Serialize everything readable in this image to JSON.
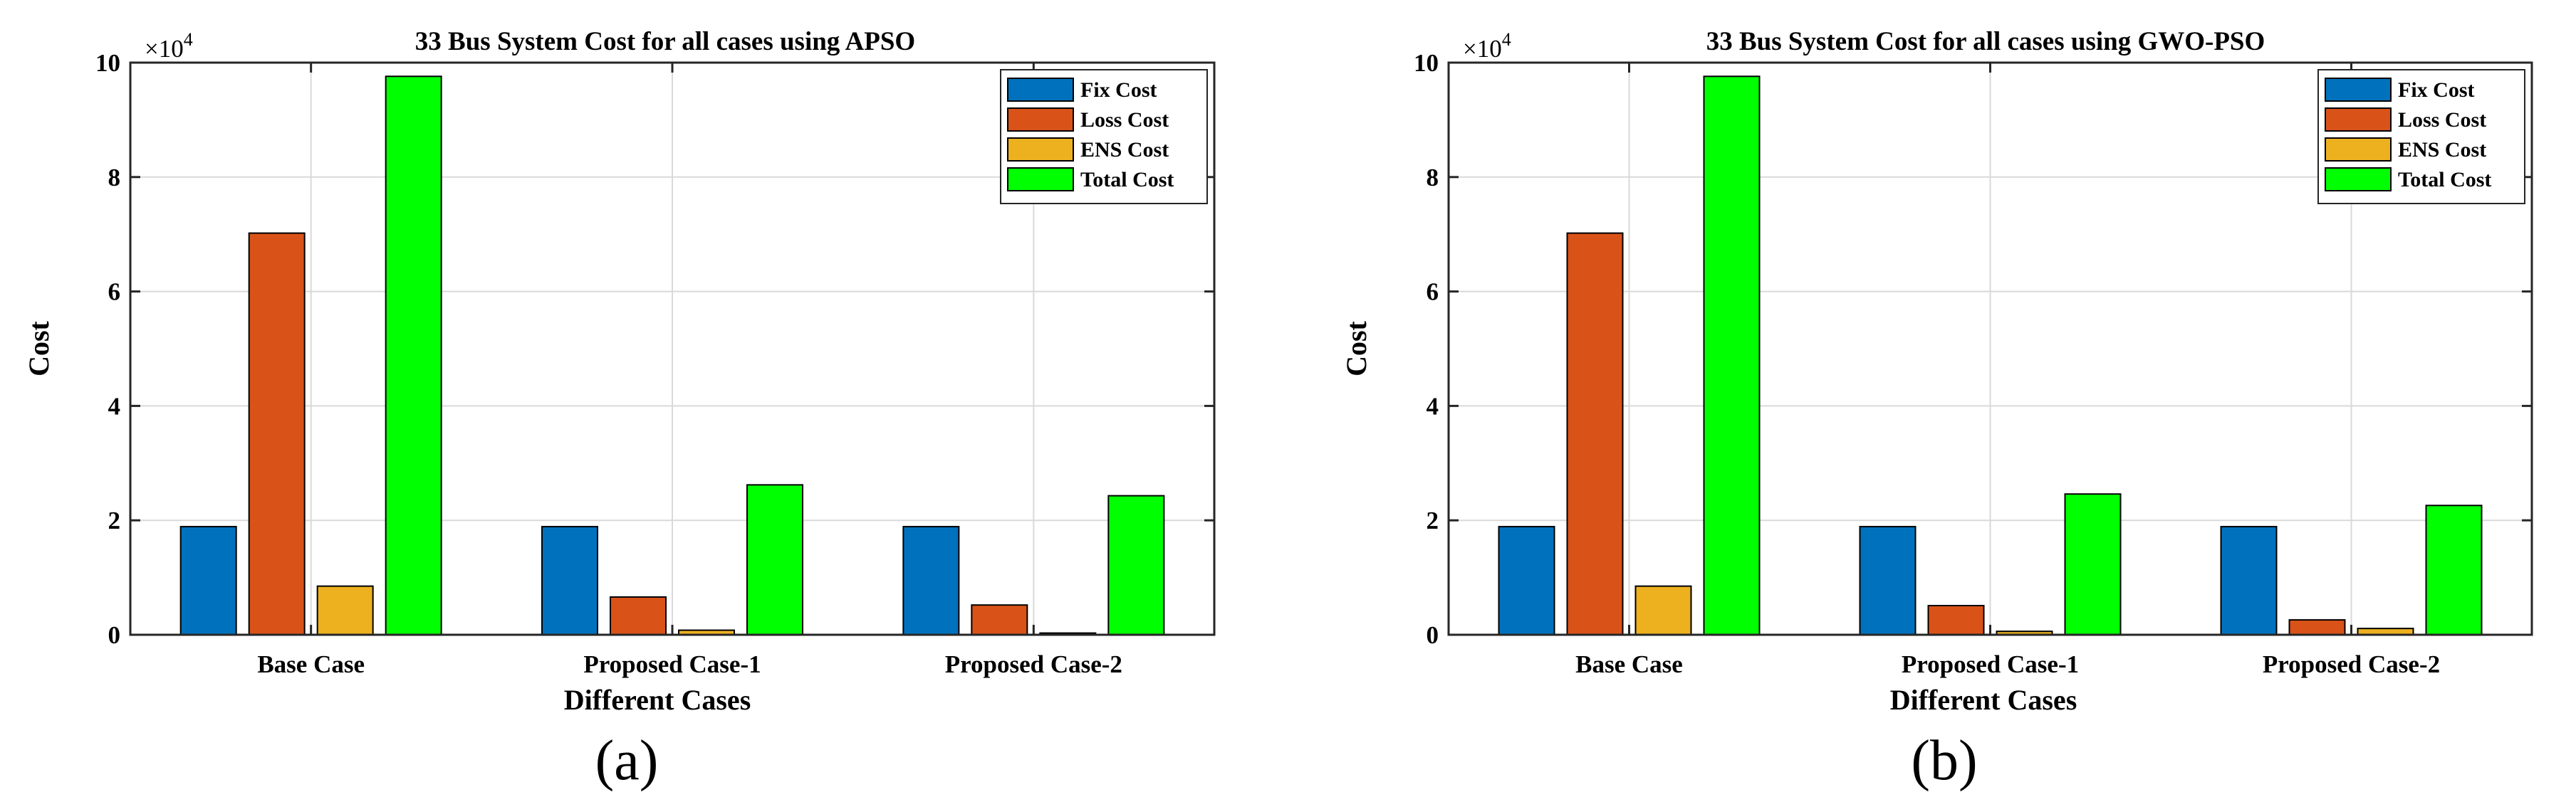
{
  "chart_data": [
    {
      "type": "bar",
      "panel_label": "(a)",
      "title": "33 Bus System Cost for all cases using APSO",
      "xlabel": "Different Cases",
      "ylabel": "Cost",
      "ylim": [
        0,
        100000
      ],
      "yticks": [
        0,
        2,
        4,
        6,
        8,
        10
      ],
      "yscale_label": "×10",
      "yscale_exponent": "4",
      "grid": true,
      "legend_position": "top-right",
      "categories": [
        "Base Case",
        "Proposed Case-1",
        "Proposed Case-2"
      ],
      "series": [
        {
          "name": "Fix Cost",
          "color": "#0072BD",
          "values": [
            18900,
            18900,
            18900
          ]
        },
        {
          "name": "Loss Cost",
          "color": "#D95319",
          "values": [
            70200,
            6600,
            5200
          ]
        },
        {
          "name": "ENS Cost",
          "color": "#EDB120",
          "values": [
            8500,
            800,
            300
          ]
        },
        {
          "name": "Total Cost",
          "color": "#00FF00",
          "values": [
            97600,
            26200,
            24300
          ]
        }
      ]
    },
    {
      "type": "bar",
      "panel_label": "(b)",
      "title": "33 Bus System Cost for all cases using GWO-PSO",
      "xlabel": "Different Cases",
      "ylabel": "Cost",
      "ylim": [
        0,
        100000
      ],
      "yticks": [
        0,
        2,
        4,
        6,
        8,
        10
      ],
      "yscale_label": "×10",
      "yscale_exponent": "4",
      "grid": true,
      "legend_position": "top-right",
      "categories": [
        "Base Case",
        "Proposed Case-1",
        "Proposed Case-2"
      ],
      "series": [
        {
          "name": "Fix Cost",
          "color": "#0072BD",
          "values": [
            18900,
            18900,
            18900
          ]
        },
        {
          "name": "Loss Cost",
          "color": "#D95319",
          "values": [
            70200,
            5100,
            2600
          ]
        },
        {
          "name": "ENS Cost",
          "color": "#EDB120",
          "values": [
            8500,
            600,
            1100
          ]
        },
        {
          "name": "Total Cost",
          "color": "#00FF00",
          "values": [
            97600,
            24600,
            22600
          ]
        }
      ]
    }
  ]
}
